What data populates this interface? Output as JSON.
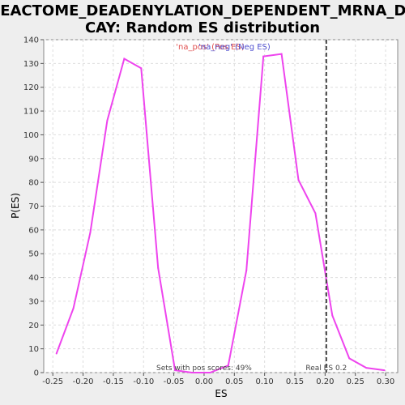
{
  "chart_data": {
    "type": "line",
    "title_line1": "REACTOME_DEADENYLATION_DEPENDENT_MRNA_DE",
    "title_line2": "CAY: Random ES distribution",
    "xlabel": "ES",
    "ylabel": "P(ES)",
    "xlim": [
      -0.265,
      0.32
    ],
    "ylim": [
      0,
      140
    ],
    "x_ticks": [
      -0.25,
      -0.2,
      -0.15,
      -0.1,
      -0.05,
      0.0,
      0.05,
      0.1,
      0.15,
      0.2,
      0.25,
      0.3
    ],
    "x_tick_labels": [
      "-0.25",
      "-0.20",
      "-0.15",
      "-0.10",
      "-0.05",
      "0.00",
      "0.05",
      "0.10",
      "0.15",
      "0.20",
      "0.25",
      "0.30"
    ],
    "y_ticks": [
      0,
      10,
      20,
      30,
      40,
      50,
      60,
      70,
      80,
      90,
      100,
      110,
      120,
      130,
      140
    ],
    "grid": true,
    "series": [
      {
        "color": "#ee44ee",
        "x": [
          -0.244,
          -0.216,
          -0.188,
          -0.16,
          -0.132,
          -0.104,
          -0.076,
          -0.048,
          -0.02,
          0.01,
          0.04,
          0.07,
          0.098,
          0.128,
          0.156,
          0.184,
          0.212,
          0.24,
          0.268,
          0.298
        ],
        "y": [
          8,
          27,
          59,
          106,
          132,
          128,
          44,
          1,
          0,
          0,
          3,
          43,
          133,
          134,
          81,
          67,
          24,
          6,
          2,
          1
        ]
      }
    ],
    "legend": {
      "position": "top-center",
      "pos_label": "'na_pos' (Pos ES)",
      "neg_label": "'na_neg' (Neg ES)"
    },
    "real_es": {
      "value": 0.202,
      "label": "Real ES 0.2"
    },
    "annotation": "Sets with pos scores: 49%"
  }
}
